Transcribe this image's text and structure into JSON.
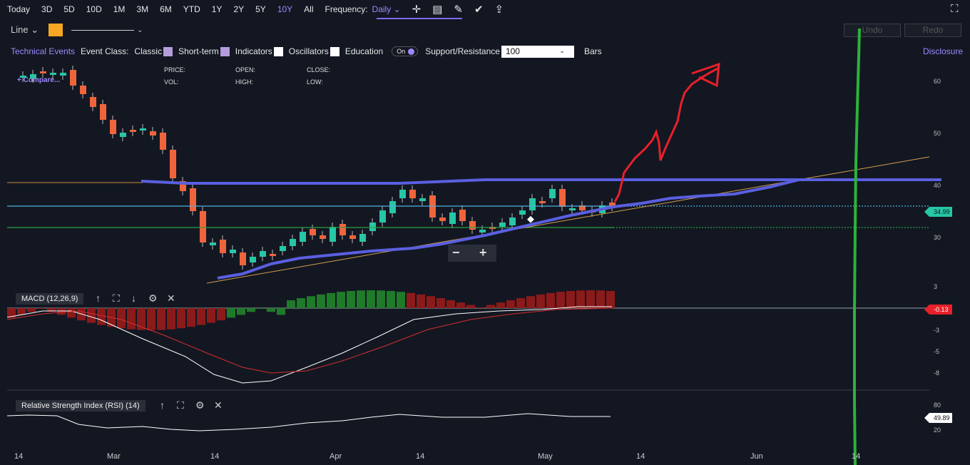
{
  "toolbar": {
    "ranges": [
      "Today",
      "3D",
      "5D",
      "10D",
      "1M",
      "3M",
      "6M",
      "YTD",
      "1Y",
      "2Y",
      "5Y",
      "10Y",
      "All"
    ],
    "selected_range": "10Y",
    "frequency_label": "Frequency:",
    "frequency_value": "Daily",
    "icons": [
      "crosshair-icon",
      "annotation-icon",
      "pencil-icon",
      "check-badge-icon",
      "share-icon",
      "fullscreen-icon"
    ]
  },
  "row2": {
    "chart_type": "Line",
    "accent": "#f5a623",
    "undo": "Undo",
    "redo": "Redo"
  },
  "row3": {
    "technical_events": "Technical Events",
    "event_class": "Event Class:",
    "classic": "Classic",
    "short_term": "Short-term",
    "indicators": "Indicators",
    "oscillators": "Oscillators",
    "education": "Education",
    "toggle": "On",
    "support_resistance": "Support/Resistance",
    "bars_value": "100",
    "bars_label": "Bars",
    "disclosure": "Disclosure"
  },
  "legend": {
    "compare": "+ Compare...",
    "price": "PRICE:",
    "open": "OPEN:",
    "close": "CLOSE:",
    "vol": "VOL:",
    "high": "HIGH:",
    "low": "LOW:"
  },
  "price_axis": [
    "60",
    "50",
    "40",
    "30"
  ],
  "last_price": "34.99",
  "macd": {
    "label": "MACD (12,26,9)",
    "axis": [
      "3",
      "-3",
      "-5",
      "-8"
    ],
    "value": "-0.13"
  },
  "rsi": {
    "label": "Relative Strength Index (RSI) (14)",
    "axis": [
      "80",
      "20"
    ],
    "value": "49.89"
  },
  "x_axis": [
    "14",
    "Mar",
    "14",
    "Apr",
    "14",
    "May",
    "14",
    "Jun",
    "14"
  ],
  "zoom": {
    "minus": "−",
    "plus": "+"
  },
  "colors": {
    "up": "#26c6a6",
    "down": "#f0643c",
    "accent": "#9c89ff",
    "blue_line": "#5a5fe0",
    "red_drawing": "#e8202a",
    "green_drawing": "#2bb33a"
  }
}
